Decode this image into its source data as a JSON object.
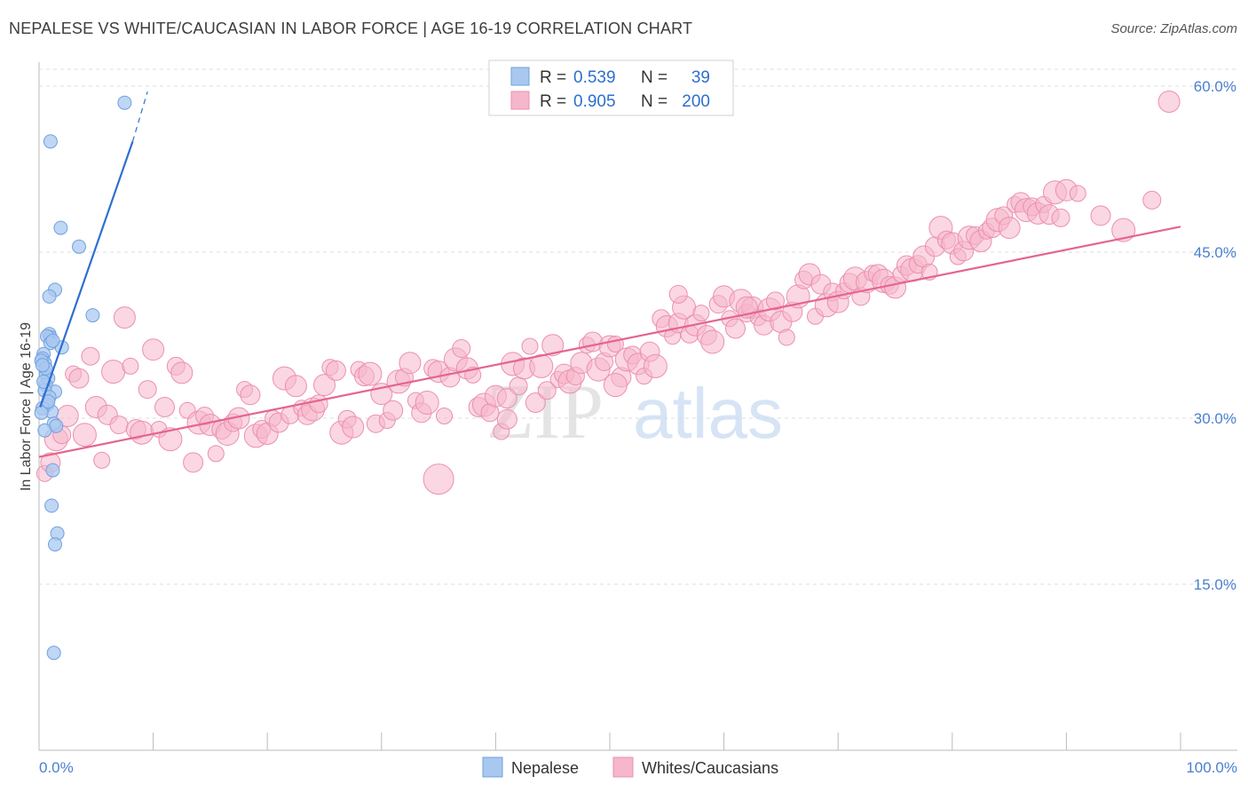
{
  "title": "NEPALESE VS WHITE/CAUCASIAN IN LABOR FORCE | AGE 16-19 CORRELATION CHART",
  "source": "Source: ZipAtlas.com",
  "watermark": {
    "zip": "ZIP",
    "atlas": "atlas"
  },
  "colors": {
    "blue_fill": "#a9c8f0",
    "blue_stroke": "#6fa1de",
    "blue_line": "#2d6fcf",
    "pink_fill": "#f6b6cb",
    "pink_stroke": "#ec8fb0",
    "pink_line": "#e4658f",
    "axis_text": "#4a7fd0",
    "grid": "#dddddd"
  },
  "legend": {
    "rows": [
      {
        "r_label": "R =",
        "r_value": "0.539",
        "n_label": "N =",
        "n_value": "39"
      },
      {
        "r_label": "R =",
        "r_value": "0.905",
        "n_label": "N =",
        "n_value": "200"
      }
    ]
  },
  "bottom_legend": [
    {
      "label": "Nepalese"
    },
    {
      "label": "Whites/Caucasians"
    }
  ],
  "chart_data": {
    "type": "scatter",
    "title": "NEPALESE VS WHITE/CAUCASIAN IN LABOR FORCE | AGE 16-19 CORRELATION CHART",
    "xlabel": "",
    "ylabel": "In Labor Force | Age 16-19",
    "xlim": [
      0,
      100
    ],
    "ylim": [
      0,
      60
    ],
    "x_tick_labels": [
      "0.0%",
      "100.0%"
    ],
    "y_tick_values": [
      15,
      30,
      45,
      60
    ],
    "y_tick_labels": [
      "15.0%",
      "30.0%",
      "45.0%",
      "60.0%"
    ],
    "series": [
      {
        "name": "Nepalese",
        "R": 0.539,
        "N": 39,
        "trend": {
          "x0": 0.1,
          "y0": 31.0,
          "x1": 8.2,
          "y1": 55.0,
          "dash_to_x": 9.5,
          "dash_to_y": 59.5
        },
        "points": [
          [
            7.5,
            58.5
          ],
          [
            1.0,
            55.0
          ],
          [
            1.9,
            47.2
          ],
          [
            3.5,
            45.5
          ],
          [
            1.4,
            41.6
          ],
          [
            0.9,
            41.0
          ],
          [
            4.7,
            39.3
          ],
          [
            0.9,
            37.6
          ],
          [
            1.0,
            37.3
          ],
          [
            0.7,
            37.4
          ],
          [
            2.0,
            36.4
          ],
          [
            0.4,
            35.8
          ],
          [
            0.3,
            35.4
          ],
          [
            0.5,
            35.0
          ],
          [
            0.2,
            35.2
          ],
          [
            0.6,
            34.0
          ],
          [
            0.8,
            33.6
          ],
          [
            0.6,
            33.0
          ],
          [
            1.4,
            32.4
          ],
          [
            0.5,
            32.5
          ],
          [
            0.9,
            31.9
          ],
          [
            0.7,
            31.2
          ],
          [
            1.1,
            30.6
          ],
          [
            0.3,
            30.9
          ],
          [
            0.2,
            30.5
          ],
          [
            1.3,
            29.5
          ],
          [
            1.5,
            29.3
          ],
          [
            0.5,
            28.9
          ],
          [
            1.2,
            25.3
          ],
          [
            1.1,
            22.1
          ],
          [
            1.6,
            19.6
          ],
          [
            1.4,
            18.6
          ],
          [
            1.3,
            8.8
          ],
          [
            0.6,
            34.5
          ],
          [
            1.0,
            36.8
          ],
          [
            0.4,
            33.3
          ],
          [
            0.8,
            31.5
          ],
          [
            0.3,
            34.8
          ],
          [
            1.2,
            37.0
          ]
        ]
      },
      {
        "name": "Whites/Caucasians",
        "R": 0.905,
        "N": 200,
        "trend": {
          "x0": 0.0,
          "y0": 26.5,
          "x1": 100.0,
          "y1": 47.3
        },
        "points": [
          [
            0.5,
            25.0
          ],
          [
            1.0,
            26.0
          ],
          [
            1.5,
            28.1
          ],
          [
            2.0,
            28.5
          ],
          [
            2.5,
            30.2
          ],
          [
            3.0,
            34.0
          ],
          [
            3.5,
            33.6
          ],
          [
            4.0,
            28.5
          ],
          [
            4.5,
            35.6
          ],
          [
            5.0,
            31.0
          ],
          [
            5.5,
            26.2
          ],
          [
            6.0,
            30.3
          ],
          [
            6.5,
            34.2
          ],
          [
            7.0,
            29.4
          ],
          [
            7.5,
            39.1
          ],
          [
            8.0,
            34.7
          ],
          [
            8.5,
            29.0
          ],
          [
            9.0,
            28.7
          ],
          [
            9.5,
            32.6
          ],
          [
            10.0,
            36.2
          ],
          [
            10.5,
            29.0
          ],
          [
            11.0,
            31.0
          ],
          [
            11.5,
            28.1
          ],
          [
            12.0,
            34.7
          ],
          [
            12.5,
            34.1
          ],
          [
            13.0,
            30.7
          ],
          [
            13.5,
            26.0
          ],
          [
            14.0,
            29.6
          ],
          [
            14.5,
            30.2
          ],
          [
            15.0,
            29.4
          ],
          [
            15.5,
            26.8
          ],
          [
            16.0,
            29.0
          ],
          [
            16.5,
            28.6
          ],
          [
            17.0,
            29.6
          ],
          [
            17.5,
            30.0
          ],
          [
            18.0,
            32.6
          ],
          [
            18.5,
            32.1
          ],
          [
            19.0,
            28.4
          ],
          [
            19.5,
            29.0
          ],
          [
            20.0,
            28.6
          ],
          [
            20.5,
            30.0
          ],
          [
            21.0,
            29.6
          ],
          [
            21.5,
            33.6
          ],
          [
            22.0,
            30.3
          ],
          [
            22.5,
            32.9
          ],
          [
            23.0,
            30.9
          ],
          [
            23.5,
            30.3
          ],
          [
            24.0,
            30.8
          ],
          [
            24.5,
            31.3
          ],
          [
            25.0,
            33.0
          ],
          [
            25.5,
            34.6
          ],
          [
            26.0,
            34.3
          ],
          [
            26.5,
            28.7
          ],
          [
            27.0,
            29.9
          ],
          [
            27.5,
            29.2
          ],
          [
            28.0,
            34.4
          ],
          [
            28.5,
            33.8
          ],
          [
            29.0,
            34.0
          ],
          [
            29.5,
            29.5
          ],
          [
            30.0,
            32.2
          ],
          [
            30.5,
            29.8
          ],
          [
            31.0,
            30.7
          ],
          [
            31.5,
            33.3
          ],
          [
            32.0,
            33.7
          ],
          [
            32.5,
            35.0
          ],
          [
            33.0,
            31.6
          ],
          [
            33.5,
            30.5
          ],
          [
            34.0,
            31.4
          ],
          [
            34.5,
            34.5
          ],
          [
            35.0,
            34.2
          ],
          [
            35.5,
            30.2
          ],
          [
            36.0,
            33.7
          ],
          [
            36.5,
            35.3
          ],
          [
            37.0,
            36.3
          ],
          [
            37.5,
            34.5
          ],
          [
            38.0,
            33.9
          ],
          [
            38.5,
            31.0
          ],
          [
            39.0,
            31.2
          ],
          [
            39.5,
            30.5
          ],
          [
            40.0,
            32.0
          ],
          [
            40.5,
            28.8
          ],
          [
            41.0,
            29.9
          ],
          [
            41.5,
            34.9
          ],
          [
            42.0,
            32.9
          ],
          [
            42.5,
            34.5
          ],
          [
            43.0,
            36.5
          ],
          [
            43.5,
            31.4
          ],
          [
            44.0,
            34.7
          ],
          [
            44.5,
            32.5
          ],
          [
            45.0,
            36.6
          ],
          [
            45.5,
            33.5
          ],
          [
            46.0,
            34.0
          ],
          [
            46.5,
            33.3
          ],
          [
            47.0,
            33.8
          ],
          [
            47.5,
            35.0
          ],
          [
            48.0,
            36.6
          ],
          [
            48.5,
            36.9
          ],
          [
            49.0,
            34.4
          ],
          [
            49.5,
            35.1
          ],
          [
            50.0,
            36.5
          ],
          [
            50.5,
            36.7
          ],
          [
            51.0,
            33.7
          ],
          [
            51.5,
            35.3
          ],
          [
            52.0,
            35.7
          ],
          [
            52.5,
            34.9
          ],
          [
            53.0,
            33.8
          ],
          [
            53.5,
            36.0
          ],
          [
            54.0,
            34.7
          ],
          [
            54.5,
            39.0
          ],
          [
            55.0,
            38.3
          ],
          [
            55.5,
            37.4
          ],
          [
            56.0,
            38.6
          ],
          [
            56.5,
            40.0
          ],
          [
            57.0,
            37.6
          ],
          [
            57.5,
            38.4
          ],
          [
            58.0,
            39.5
          ],
          [
            58.5,
            37.5
          ],
          [
            59.0,
            36.9
          ],
          [
            59.5,
            40.3
          ],
          [
            60.0,
            41.0
          ],
          [
            60.5,
            39.0
          ],
          [
            61.0,
            38.1
          ],
          [
            61.5,
            40.6
          ],
          [
            62.0,
            39.5
          ],
          [
            62.5,
            40.0
          ],
          [
            63.0,
            39.1
          ],
          [
            63.5,
            38.4
          ],
          [
            64.0,
            39.8
          ],
          [
            64.5,
            40.6
          ],
          [
            65.0,
            38.7
          ],
          [
            65.5,
            37.3
          ],
          [
            66.0,
            39.6
          ],
          [
            66.5,
            41.0
          ],
          [
            67.0,
            42.5
          ],
          [
            67.5,
            43.0
          ],
          [
            68.0,
            39.2
          ],
          [
            68.5,
            42.1
          ],
          [
            69.0,
            40.2
          ],
          [
            69.5,
            41.4
          ],
          [
            70.0,
            40.5
          ],
          [
            70.5,
            41.5
          ],
          [
            71.0,
            42.2
          ],
          [
            71.5,
            42.6
          ],
          [
            72.0,
            41.0
          ],
          [
            72.5,
            42.3
          ],
          [
            73.0,
            43.1
          ],
          [
            73.5,
            43.0
          ],
          [
            74.0,
            42.4
          ],
          [
            74.5,
            42.0
          ],
          [
            75.0,
            41.8
          ],
          [
            75.5,
            43.0
          ],
          [
            76.0,
            43.8
          ],
          [
            76.5,
            43.4
          ],
          [
            77.0,
            43.9
          ],
          [
            77.5,
            44.6
          ],
          [
            78.0,
            43.2
          ],
          [
            78.5,
            45.5
          ],
          [
            79.0,
            47.2
          ],
          [
            79.5,
            46.1
          ],
          [
            80.0,
            45.8
          ],
          [
            80.5,
            44.6
          ],
          [
            81.0,
            45.1
          ],
          [
            81.5,
            46.3
          ],
          [
            82.0,
            46.5
          ],
          [
            82.5,
            46.0
          ],
          [
            83.0,
            46.9
          ],
          [
            83.5,
            47.2
          ],
          [
            84.0,
            47.9
          ],
          [
            84.5,
            48.3
          ],
          [
            85.0,
            47.2
          ],
          [
            85.5,
            49.3
          ],
          [
            86.0,
            49.5
          ],
          [
            86.5,
            48.8
          ],
          [
            87.0,
            49.1
          ],
          [
            87.5,
            48.5
          ],
          [
            88.0,
            49.3
          ],
          [
            88.5,
            48.4
          ],
          [
            89.0,
            50.4
          ],
          [
            89.5,
            48.1
          ],
          [
            90.0,
            50.6
          ],
          [
            91.0,
            50.3
          ],
          [
            93.0,
            48.3
          ],
          [
            95.0,
            47.0
          ],
          [
            97.5,
            49.7
          ],
          [
            99.0,
            58.6
          ],
          [
            35.0,
            24.5
          ],
          [
            41.0,
            31.8
          ],
          [
            50.5,
            33.0
          ],
          [
            56.0,
            41.2
          ],
          [
            62.0,
            40.0
          ]
        ]
      }
    ]
  }
}
